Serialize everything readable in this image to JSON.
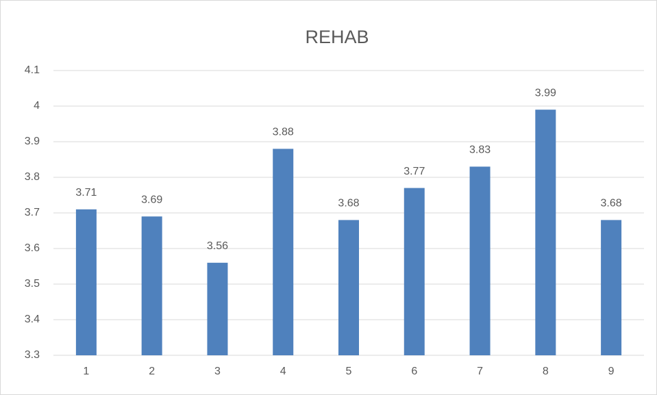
{
  "chart_data": {
    "type": "bar",
    "title": "REHAB",
    "categories": [
      "1",
      "2",
      "3",
      "4",
      "5",
      "6",
      "7",
      "8",
      "9"
    ],
    "values": [
      3.71,
      3.69,
      3.56,
      3.88,
      3.68,
      3.77,
      3.83,
      3.99,
      3.68
    ],
    "color": "#4f81bd",
    "ylim": [
      3.3,
      4.1
    ],
    "yticks": [
      3.3,
      3.4,
      3.5,
      3.6,
      3.7,
      3.8,
      3.9,
      4,
      4.1
    ],
    "grid": true
  }
}
